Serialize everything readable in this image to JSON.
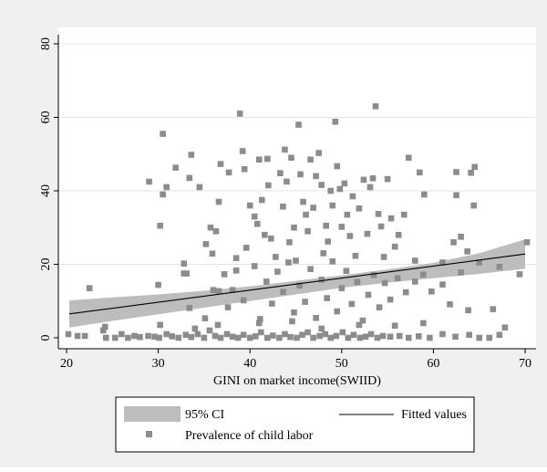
{
  "chart_data": {
    "type": "scatter",
    "title": "",
    "xlabel": "GINI on market income(SWIID)",
    "ylabel": "",
    "xlim": [
      20,
      70
    ],
    "ylim": [
      0,
      80
    ],
    "xticks": [
      20,
      30,
      40,
      50,
      60,
      70
    ],
    "yticks": [
      0,
      20,
      40,
      60,
      80
    ],
    "grid": "horizontal",
    "legend_position": "bottom",
    "legend": {
      "ci_label": "95% CI",
      "fit_label": "Fitted values",
      "scatter_label": "Prevalence of child labor"
    },
    "colors": {
      "background": "#f0f0f0",
      "plot_area": "#ffffff",
      "points": "#8c8c8c",
      "ci_band": "#bdbdbd",
      "fit_line": "#000000",
      "grid": "#e3e3e3"
    },
    "fitted_line": {
      "x": [
        20.3,
        70
      ],
      "y": [
        6.5,
        22.8
      ]
    },
    "ci_band": {
      "x": [
        20.3,
        25,
        30,
        35,
        40,
        45,
        50,
        55,
        60,
        65,
        70
      ],
      "upper": [
        10.2,
        11.0,
        11.8,
        12.8,
        14.0,
        15.5,
        17.0,
        18.6,
        20.4,
        23.0,
        26.8
      ],
      "lower": [
        2.8,
        4.6,
        6.4,
        8.2,
        10.0,
        11.8,
        13.6,
        15.0,
        16.2,
        17.4,
        18.8
      ]
    },
    "series": [
      {
        "points": [
          [
            20.2,
            1
          ],
          [
            21.2,
            0.5
          ],
          [
            22.0,
            0.5
          ],
          [
            24.0,
            2
          ],
          [
            24.3,
            0
          ],
          [
            25.3,
            0
          ],
          [
            26.0,
            1
          ],
          [
            26.7,
            0
          ],
          [
            27.4,
            0.5
          ],
          [
            28.0,
            0.2
          ],
          [
            28.9,
            0.5
          ],
          [
            29.6,
            0.3
          ],
          [
            30.1,
            0
          ],
          [
            30.9,
            1
          ],
          [
            31.5,
            0.4
          ],
          [
            32.2,
            0
          ],
          [
            33.0,
            0.8
          ],
          [
            33.6,
            0.2
          ],
          [
            34.3,
            1
          ],
          [
            35.0,
            0
          ],
          [
            35.6,
            2
          ],
          [
            36.2,
            0.5
          ],
          [
            36.8,
            0
          ],
          [
            37.5,
            1
          ],
          [
            38.1,
            0.3
          ],
          [
            38.7,
            0
          ],
          [
            39.3,
            0.8
          ],
          [
            40.0,
            0
          ],
          [
            40.6,
            0.4
          ],
          [
            41.2,
            1.5
          ],
          [
            41.9,
            0
          ],
          [
            42.5,
            0.6
          ],
          [
            43.2,
            0
          ],
          [
            43.8,
            1
          ],
          [
            44.4,
            0.2
          ],
          [
            45.1,
            0
          ],
          [
            45.7,
            0.8
          ],
          [
            46.3,
            1.5
          ],
          [
            46.9,
            0
          ],
          [
            47.6,
            0.5
          ],
          [
            48.2,
            1
          ],
          [
            48.8,
            0
          ],
          [
            49.4,
            0.5
          ],
          [
            50.1,
            1.5
          ],
          [
            50.7,
            0
          ],
          [
            51.3,
            0.8
          ],
          [
            52.0,
            0
          ],
          [
            52.6,
            0.3
          ],
          [
            53.2,
            1
          ],
          [
            53.9,
            0
          ],
          [
            54.5,
            0.5
          ],
          [
            55.3,
            0.3
          ],
          [
            56.3,
            0.5
          ],
          [
            57.3,
            0
          ],
          [
            58.4,
            0.4
          ],
          [
            59.6,
            0
          ],
          [
            61.0,
            1
          ],
          [
            62.4,
            0.3
          ],
          [
            63.9,
            0.8
          ],
          [
            65.0,
            0
          ],
          [
            66.1,
            0
          ],
          [
            67.2,
            0.8
          ],
          [
            67.8,
            2.8
          ],
          [
            24.2,
            3
          ],
          [
            30.2,
            3.5
          ],
          [
            34.0,
            2.5
          ],
          [
            36.5,
            3.5
          ],
          [
            41.0,
            4
          ],
          [
            44.6,
            4.5
          ],
          [
            47.8,
            2.5
          ],
          [
            51.9,
            3.5
          ],
          [
            55.8,
            3.3
          ],
          [
            58.9,
            4
          ],
          [
            29.0,
            42.5
          ],
          [
            30.2,
            30.5
          ],
          [
            30.5,
            39
          ],
          [
            30.5,
            55.5
          ],
          [
            30.9,
            41
          ],
          [
            31.9,
            46.3
          ],
          [
            32.8,
            20.2
          ],
          [
            33.1,
            17.5
          ],
          [
            33.4,
            43.5
          ],
          [
            33.6,
            49.8
          ],
          [
            34.5,
            41
          ],
          [
            35.2,
            25.5
          ],
          [
            35.7,
            30
          ],
          [
            35.9,
            22.9
          ],
          [
            36.0,
            13
          ],
          [
            36.3,
            29
          ],
          [
            36.6,
            37
          ],
          [
            36.8,
            47.3
          ],
          [
            37.2,
            17.3
          ],
          [
            37.7,
            45
          ],
          [
            38.1,
            13
          ],
          [
            38.5,
            21.7
          ],
          [
            38.9,
            61
          ],
          [
            39.2,
            50.8
          ],
          [
            39.4,
            45.9
          ],
          [
            39.6,
            24.5
          ],
          [
            40.0,
            36
          ],
          [
            40.5,
            33
          ],
          [
            40.8,
            31
          ],
          [
            41.0,
            48.5
          ],
          [
            41.3,
            37.5
          ],
          [
            41.6,
            28
          ],
          [
            41.9,
            48.7
          ],
          [
            42.0,
            41.5
          ],
          [
            42.3,
            27
          ],
          [
            42.8,
            22
          ],
          [
            43.3,
            44.8
          ],
          [
            43.6,
            35.7
          ],
          [
            43.8,
            51.2
          ],
          [
            44.0,
            42.5
          ],
          [
            44.3,
            26
          ],
          [
            44.5,
            49
          ],
          [
            44.8,
            30
          ],
          [
            45.0,
            21
          ],
          [
            45.3,
            58
          ],
          [
            45.5,
            44.5
          ],
          [
            45.8,
            37
          ],
          [
            46.1,
            33.5
          ],
          [
            46.3,
            29
          ],
          [
            46.6,
            48.5
          ],
          [
            46.9,
            35.4
          ],
          [
            47.2,
            44
          ],
          [
            47.5,
            50.3
          ],
          [
            47.8,
            41.6
          ],
          [
            48.0,
            23
          ],
          [
            48.3,
            30.5
          ],
          [
            48.5,
            26.2
          ],
          [
            48.8,
            40
          ],
          [
            49.0,
            36
          ],
          [
            49.3,
            58.8
          ],
          [
            49.5,
            46.7
          ],
          [
            49.8,
            40.5
          ],
          [
            50.0,
            30.2
          ],
          [
            50.3,
            42
          ],
          [
            50.6,
            33.5
          ],
          [
            50.9,
            27.7
          ],
          [
            51.2,
            38.5
          ],
          [
            51.5,
            22.3
          ],
          [
            51.9,
            35.2
          ],
          [
            52.4,
            43
          ],
          [
            52.8,
            28.3
          ],
          [
            53.1,
            41
          ],
          [
            53.4,
            43.4
          ],
          [
            53.7,
            63
          ],
          [
            54.0,
            33.7
          ],
          [
            54.3,
            30.3
          ],
          [
            54.6,
            22
          ],
          [
            55.0,
            43.2
          ],
          [
            55.4,
            32.5
          ],
          [
            55.8,
            24.8
          ],
          [
            56.2,
            28
          ],
          [
            56.8,
            33.5
          ],
          [
            57.3,
            49
          ],
          [
            58.0,
            21
          ],
          [
            58.5,
            45
          ],
          [
            59.0,
            39
          ],
          [
            61.0,
            20.5
          ],
          [
            62.2,
            26
          ],
          [
            62.5,
            38.8
          ],
          [
            62.5,
            45.1
          ],
          [
            63.0,
            27.5
          ],
          [
            63.7,
            23.5
          ],
          [
            64.1,
            44.9
          ],
          [
            64.4,
            36
          ],
          [
            64.5,
            46.5
          ],
          [
            22.5,
            13.5
          ],
          [
            30.0,
            14.4
          ],
          [
            32.8,
            17.5
          ],
          [
            33.4,
            8.1
          ],
          [
            35.1,
            5.3
          ],
          [
            36.6,
            12.7
          ],
          [
            37.6,
            8.3
          ],
          [
            38.5,
            18.3
          ],
          [
            39.3,
            10.2
          ],
          [
            40.5,
            19.5
          ],
          [
            41.1,
            5.1
          ],
          [
            41.8,
            15.3
          ],
          [
            42.4,
            9.3
          ],
          [
            43.0,
            18
          ],
          [
            43.6,
            12.5
          ],
          [
            44.2,
            20.5
          ],
          [
            44.8,
            6.9
          ],
          [
            45.4,
            14.2
          ],
          [
            46.0,
            9.8
          ],
          [
            46.6,
            18.7
          ],
          [
            47.2,
            5.4
          ],
          [
            47.8,
            15.8
          ],
          [
            48.4,
            10.8
          ],
          [
            49.0,
            20.8
          ],
          [
            49.5,
            7.2
          ],
          [
            50.0,
            13.5
          ],
          [
            50.5,
            18.2
          ],
          [
            51.1,
            9.2
          ],
          [
            51.7,
            15.2
          ],
          [
            52.3,
            4.7
          ],
          [
            52.9,
            11.7
          ],
          [
            53.5,
            17.1
          ],
          [
            54.1,
            8.3
          ],
          [
            54.7,
            14.9
          ],
          [
            55.3,
            10.4
          ],
          [
            56.1,
            16.2
          ],
          [
            57.0,
            12.4
          ],
          [
            58.0,
            15.3
          ],
          [
            58.9,
            17.2
          ],
          [
            59.8,
            12.6
          ],
          [
            61.0,
            14.5
          ],
          [
            61.8,
            9.1
          ],
          [
            63.0,
            17.8
          ],
          [
            63.8,
            7.5
          ],
          [
            65.0,
            20.5
          ],
          [
            66.5,
            7.8
          ],
          [
            67.2,
            19.3
          ],
          [
            69.4,
            17.3
          ],
          [
            70.2,
            26
          ]
        ]
      }
    ]
  }
}
